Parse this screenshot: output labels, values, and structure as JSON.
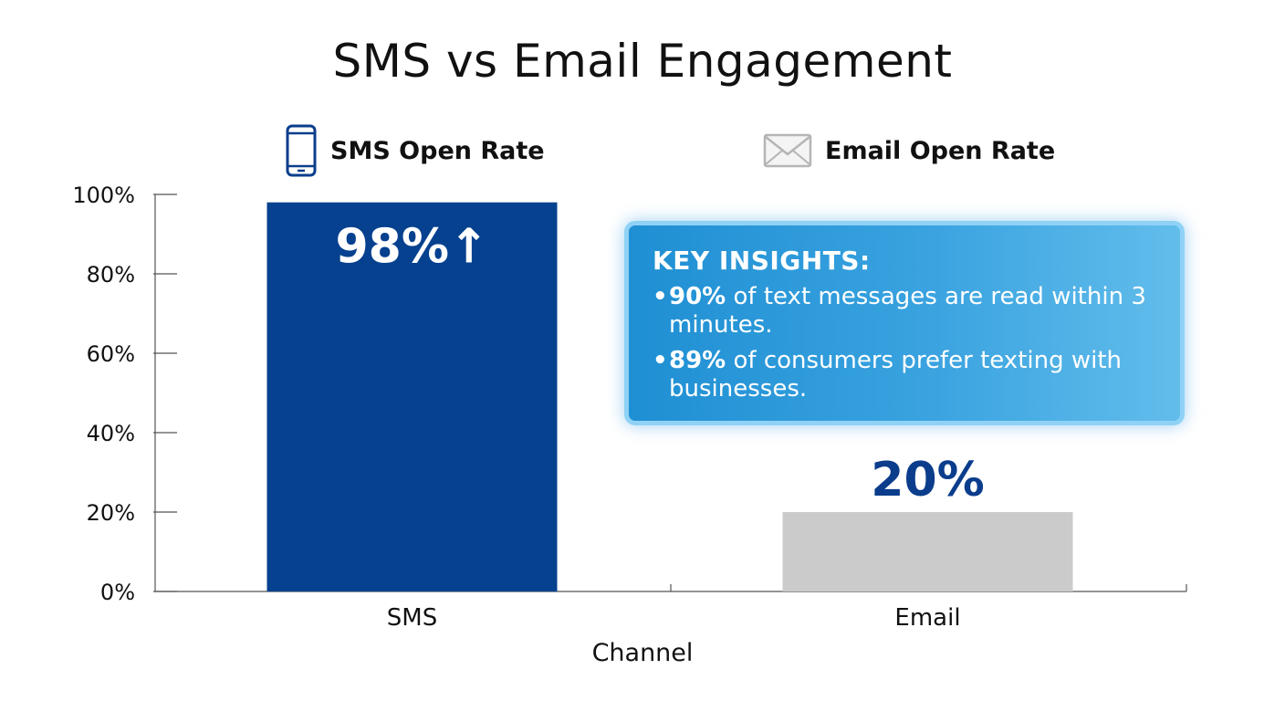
{
  "chart_data": {
    "type": "bar",
    "title": "SMS vs Email Engagement",
    "xlabel": "Channel",
    "ylabel": "",
    "categories": [
      "SMS",
      "Email"
    ],
    "values": [
      98,
      20
    ],
    "value_labels": [
      "98%↑",
      "20%"
    ],
    "ylim": [
      0,
      100
    ],
    "yticks": [
      0,
      20,
      40,
      60,
      80,
      100
    ],
    "ytick_labels": [
      "0%",
      "20%",
      "40%",
      "60%",
      "80%",
      "100%"
    ],
    "grid": false,
    "legend": {
      "placement": "top",
      "entries": [
        {
          "label": "SMS Open Rate",
          "icon": "phone-icon"
        },
        {
          "label": "Email Open Rate",
          "icon": "envelope-icon"
        }
      ]
    },
    "colors": {
      "SMS": "#05418f",
      "Email": "#cbcbcb",
      "sms_label": "#ffffff",
      "email_label": "#0b3d8c"
    }
  },
  "insights": {
    "heading": "KEY INSIGHTS:",
    "items": [
      {
        "highlight": "90%",
        "text": " of text messages are read within 3 minutes."
      },
      {
        "highlight": "89%",
        "text": " of consumers prefer texting with businesses."
      }
    ]
  }
}
